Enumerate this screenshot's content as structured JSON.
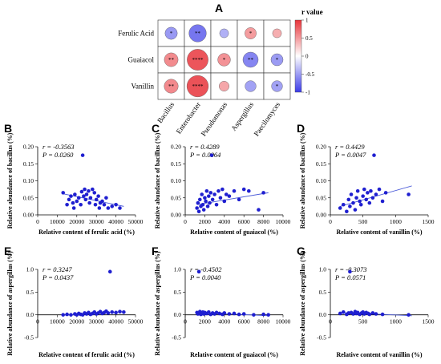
{
  "heatmap": {
    "panel": "A",
    "rows": [
      "Ferulic Acid",
      "Guaiacol",
      "Vanillin"
    ],
    "cols": [
      "Bacillus",
      "Enterobacter",
      "Pseudomonas",
      "Aspergillus",
      "Paecilomyces"
    ],
    "r": [
      [
        -0.36,
        -0.6,
        -0.2,
        0.32,
        0.2
      ],
      [
        0.43,
        0.78,
        0.38,
        -0.5,
        -0.35
      ],
      [
        0.44,
        0.8,
        0.25,
        -0.3,
        -0.3
      ]
    ],
    "stars": [
      [
        "*",
        "**",
        "",
        "*",
        ""
      ],
      [
        "**",
        "****",
        "*",
        "**",
        "*"
      ],
      [
        "**",
        "****",
        "",
        "",
        "*"
      ]
    ],
    "colorbar": {
      "title": "r value",
      "ticks": [
        "1",
        "0.5",
        "0",
        "-0.5",
        "-1"
      ],
      "tick_values": [
        1,
        0.5,
        0,
        -0.5,
        -1
      ],
      "pos_color": "#e8343a",
      "neg_color": "#3b3be8"
    }
  },
  "chart_data": [
    {
      "panel": "B",
      "type": "scatter",
      "xlabel": "Relative content of ferulic acid (%)",
      "ylabel": "Relative abundance of bacillus (%)",
      "xlim": [
        0,
        50000
      ],
      "ylim": [
        0,
        0.2
      ],
      "xticks": [
        "0",
        "10000",
        "20000",
        "30000",
        "40000",
        "50000"
      ],
      "yticks": [
        "0.00",
        "0.05",
        "0.10",
        "0.15",
        "0.20"
      ],
      "r_text": "r = -0.3563",
      "p_text": "P = 0.0260",
      "fit": [
        [
          13000,
          0.062
        ],
        [
          44000,
          0.025
        ]
      ],
      "points": [
        [
          13000,
          0.065
        ],
        [
          15000,
          0.03
        ],
        [
          16000,
          0.045
        ],
        [
          17000,
          0.055
        ],
        [
          18000,
          0.035
        ],
        [
          18500,
          0.02
        ],
        [
          19000,
          0.06
        ],
        [
          20000,
          0.04
        ],
        [
          21000,
          0.05
        ],
        [
          22000,
          0.03
        ],
        [
          22500,
          0.068
        ],
        [
          23000,
          0.175
        ],
        [
          23500,
          0.055
        ],
        [
          24000,
          0.075
        ],
        [
          24500,
          0.045
        ],
        [
          25000,
          0.06
        ],
        [
          26000,
          0.07
        ],
        [
          26500,
          0.035
        ],
        [
          27000,
          0.05
        ],
        [
          28000,
          0.075
        ],
        [
          29000,
          0.065
        ],
        [
          29500,
          0.03
        ],
        [
          30000,
          0.045
        ],
        [
          31000,
          0.055
        ],
        [
          31500,
          0.02
        ],
        [
          32000,
          0.035
        ],
        [
          33000,
          0.04
        ],
        [
          34000,
          0.03
        ],
        [
          35000,
          0.05
        ],
        [
          36000,
          0.02
        ],
        [
          38000,
          0.025
        ],
        [
          40000,
          0.03
        ],
        [
          42000,
          0.02
        ]
      ]
    },
    {
      "panel": "C",
      "type": "scatter",
      "xlabel": "Relative content of guaiacol (%)",
      "ylabel": "Relative abundance of bacillus (%)",
      "xlim": [
        0,
        10000
      ],
      "ylim": [
        0,
        0.2
      ],
      "xticks": [
        "0",
        "2000",
        "4000",
        "6000",
        "8000",
        "10000"
      ],
      "yticks": [
        "0.00",
        "0.05",
        "0.10",
        "0.15",
        "0.20"
      ],
      "r_text": "r = 0.4289",
      "p_text": "P = 0.0064",
      "fit": [
        [
          1200,
          0.03
        ],
        [
          8500,
          0.065
        ]
      ],
      "points": [
        [
          1200,
          0.02
        ],
        [
          1300,
          0.035
        ],
        [
          1400,
          0.01
        ],
        [
          1500,
          0.045
        ],
        [
          1600,
          0.025
        ],
        [
          1700,
          0.06
        ],
        [
          1800,
          0.03
        ],
        [
          1900,
          0.015
        ],
        [
          2000,
          0.05
        ],
        [
          2100,
          0.04
        ],
        [
          2200,
          0.07
        ],
        [
          2300,
          0.025
        ],
        [
          2400,
          0.055
        ],
        [
          2500,
          0.035
        ],
        [
          2600,
          0.065
        ],
        [
          2700,
          0.175
        ],
        [
          2800,
          0.045
        ],
        [
          3000,
          0.06
        ],
        [
          3200,
          0.03
        ],
        [
          3400,
          0.07
        ],
        [
          3600,
          0.05
        ],
        [
          3800,
          0.075
        ],
        [
          4000,
          0.04
        ],
        [
          4200,
          0.06
        ],
        [
          4500,
          0.055
        ],
        [
          5000,
          0.07
        ],
        [
          5500,
          0.045
        ],
        [
          6000,
          0.075
        ],
        [
          6500,
          0.07
        ],
        [
          7500,
          0.015
        ],
        [
          8000,
          0.065
        ]
      ]
    },
    {
      "panel": "D",
      "type": "scatter",
      "xlabel": "Relative content of vanillin (%)",
      "ylabel": "Relative abundance of bacillus (%)",
      "xlim": [
        0,
        1500
      ],
      "ylim": [
        0,
        0.2
      ],
      "xticks": [
        "0",
        "500",
        "1000",
        "1500"
      ],
      "yticks": [
        "0.00",
        "0.05",
        "0.10",
        "0.15",
        "0.20"
      ],
      "r_text": "r = 0.4429",
      "p_text": "P = 0.0047",
      "fit": [
        [
          150,
          0.025
        ],
        [
          1250,
          0.085
        ]
      ],
      "points": [
        [
          150,
          0.02
        ],
        [
          200,
          0.03
        ],
        [
          250,
          0.01
        ],
        [
          280,
          0.045
        ],
        [
          300,
          0.025
        ],
        [
          320,
          0.06
        ],
        [
          350,
          0.035
        ],
        [
          380,
          0.015
        ],
        [
          400,
          0.05
        ],
        [
          420,
          0.07
        ],
        [
          450,
          0.04
        ],
        [
          470,
          0.03
        ],
        [
          500,
          0.055
        ],
        [
          520,
          0.075
        ],
        [
          550,
          0.045
        ],
        [
          570,
          0.065
        ],
        [
          600,
          0.035
        ],
        [
          620,
          0.07
        ],
        [
          650,
          0.05
        ],
        [
          670,
          0.175
        ],
        [
          700,
          0.06
        ],
        [
          750,
          0.075
        ],
        [
          800,
          0.04
        ],
        [
          850,
          0.065
        ],
        [
          1200,
          0.06
        ]
      ]
    },
    {
      "panel": "E",
      "type": "scatter",
      "xlabel": "Relative content of ferulic acid (%)",
      "ylabel": "Relative abundance of aspergillus (%)",
      "xlim": [
        0,
        50000
      ],
      "ylim": [
        -0.5,
        1.0
      ],
      "xticks": [
        "0",
        "10000",
        "20000",
        "30000",
        "40000",
        "50000"
      ],
      "yticks": [
        "-0.5",
        "0.0",
        "0.5",
        "1.0"
      ],
      "r_text": "r = 0.3247",
      "p_text": "P = 0.0437",
      "fit": [
        [
          13000,
          -0.01
        ],
        [
          44000,
          0.07
        ]
      ],
      "points": [
        [
          13000,
          0.0
        ],
        [
          15000,
          0.01
        ],
        [
          17000,
          0.0
        ],
        [
          19000,
          0.02
        ],
        [
          20000,
          0.0
        ],
        [
          21000,
          0.03
        ],
        [
          22000,
          0.01
        ],
        [
          23000,
          0.0
        ],
        [
          24000,
          0.04
        ],
        [
          25000,
          0.02
        ],
        [
          26000,
          0.05
        ],
        [
          27000,
          0.01
        ],
        [
          28000,
          0.03
        ],
        [
          29000,
          0.06
        ],
        [
          30000,
          0.02
        ],
        [
          31000,
          0.04
        ],
        [
          32000,
          0.07
        ],
        [
          33000,
          0.03
        ],
        [
          34000,
          0.05
        ],
        [
          35000,
          0.08
        ],
        [
          36000,
          0.04
        ],
        [
          37000,
          0.95
        ],
        [
          38000,
          0.06
        ],
        [
          40000,
          0.05
        ],
        [
          42000,
          0.07
        ],
        [
          44000,
          0.06
        ]
      ]
    },
    {
      "panel": "F",
      "type": "scatter",
      "xlabel": "Relative content of guaiacol (%)",
      "ylabel": "Relative abundance of aspergillus (%)",
      "xlim": [
        0,
        10000
      ],
      "ylim": [
        -0.5,
        1.0
      ],
      "xticks": [
        "0",
        "2000",
        "4000",
        "6000",
        "8000",
        "10000"
      ],
      "yticks": [
        "-0.5",
        "0.0",
        "0.5",
        "1.0"
      ],
      "r_text": "r = -0.4502",
      "p_text": "P = 0.0040",
      "fit": [
        [
          1200,
          0.05
        ],
        [
          8500,
          -0.02
        ]
      ],
      "points": [
        [
          1200,
          0.05
        ],
        [
          1300,
          0.02
        ],
        [
          1400,
          0.95
        ],
        [
          1500,
          0.07
        ],
        [
          1600,
          0.01
        ],
        [
          1700,
          0.04
        ],
        [
          1800,
          0.06
        ],
        [
          1900,
          0.02
        ],
        [
          2000,
          0.05
        ],
        [
          2200,
          0.03
        ],
        [
          2400,
          0.06
        ],
        [
          2600,
          0.01
        ],
        [
          2800,
          0.04
        ],
        [
          3000,
          0.02
        ],
        [
          3200,
          0.05
        ],
        [
          3500,
          0.03
        ],
        [
          3800,
          0.01
        ],
        [
          4000,
          0.04
        ],
        [
          4500,
          0.02
        ],
        [
          5000,
          0.03
        ],
        [
          5500,
          0.01
        ],
        [
          6000,
          0.02
        ],
        [
          7000,
          0.0
        ],
        [
          8000,
          0.01
        ],
        [
          8500,
          0.0
        ]
      ]
    },
    {
      "panel": "G",
      "type": "scatter",
      "xlabel": "Relative content of vanillin (%)",
      "ylabel": "Relative abundance of aspergillus (%)",
      "xlim": [
        0,
        1500
      ],
      "ylim": [
        -0.5,
        1.0
      ],
      "xticks": [
        "0",
        "500",
        "1000",
        "1500"
      ],
      "yticks": [
        "-0.5",
        "0.0",
        "0.5",
        "1.0"
      ],
      "r_text": "r = -0.3073",
      "p_text": "P = 0.0571",
      "fit": [
        [
          150,
          0.05
        ],
        [
          1250,
          -0.02
        ]
      ],
      "points": [
        [
          150,
          0.03
        ],
        [
          200,
          0.06
        ],
        [
          250,
          0.01
        ],
        [
          280,
          0.04
        ],
        [
          300,
          0.95
        ],
        [
          320,
          0.05
        ],
        [
          350,
          0.02
        ],
        [
          380,
          0.07
        ],
        [
          400,
          0.03
        ],
        [
          420,
          0.05
        ],
        [
          450,
          0.01
        ],
        [
          480,
          0.04
        ],
        [
          500,
          0.06
        ],
        [
          520,
          0.02
        ],
        [
          550,
          0.05
        ],
        [
          580,
          0.03
        ],
        [
          600,
          0.01
        ],
        [
          650,
          0.04
        ],
        [
          700,
          0.02
        ],
        [
          800,
          0.01
        ],
        [
          1200,
          0.0
        ]
      ]
    }
  ],
  "colors": {
    "dot": "#1f1fd0",
    "fit": "#4a5ad8"
  }
}
